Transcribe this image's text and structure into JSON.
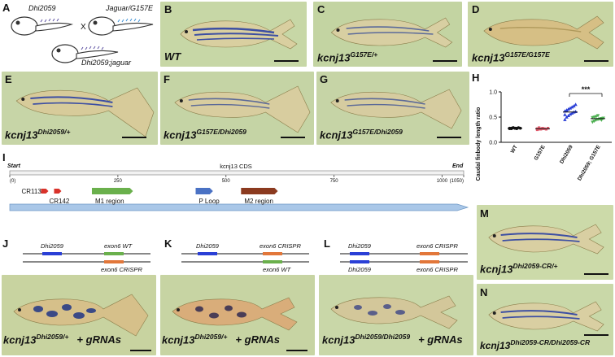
{
  "panels": {
    "A": "A",
    "B": "B",
    "C": "C",
    "D": "D",
    "E": "E",
    "F": "F",
    "G": "G",
    "H": "H",
    "I": "I",
    "J": "J",
    "K": "K",
    "L": "L",
    "M": "M",
    "N": "N"
  },
  "panel_a": {
    "embryo1": "Dhi2059",
    "cross": "X",
    "embryo2": "Jaguar/G157E",
    "embryo3": "Dhi2059;jaguar"
  },
  "fish_captions": {
    "B": {
      "gene": "WT",
      "allele": ""
    },
    "C": {
      "gene": "kcnj13",
      "allele": "G157E/+"
    },
    "D": {
      "gene": "kcnj13",
      "allele": "G157E/G157E"
    },
    "E": {
      "gene": "kcnj13",
      "allele": "Dhi2059/+"
    },
    "F": {
      "gene": "kcnj13",
      "allele": "G157E/Dhi2059"
    },
    "G": {
      "gene": "kcnj13",
      "allele": "G157E/Dhi2059"
    },
    "M": {
      "gene": "kcnj13",
      "allele": "Dhi2059-CR/+"
    },
    "N": {
      "gene": "kcnj13",
      "allele": "Dhi2059-CR/Dhi2059-CR"
    },
    "J2": {
      "gene": "kcnj13",
      "allele": "Dhi2059/+",
      "suffix": "+ gRNAs"
    },
    "K2": {
      "gene": "kcnj13",
      "allele": "Dhi2059/+",
      "suffix": "+ gRNAs"
    },
    "L2": {
      "gene": "kcnj13",
      "allele": "Dhi2059/Dhi2059",
      "suffix": "+ gRNAs"
    }
  },
  "cds_map": {
    "title": "kcnj13 CDS",
    "start": "Start",
    "end": "End",
    "ticks": [
      "(0)",
      "250",
      "500",
      "750",
      "1000",
      "(1050)"
    ],
    "features": [
      {
        "label": "CR113",
        "pos": 80,
        "color": "#d9322a"
      },
      {
        "label": "CR142",
        "pos": 110,
        "color": "#d9322a"
      },
      {
        "label": "M1 region",
        "start": 190,
        "end": 285,
        "color": "#6ab04c"
      },
      {
        "label": "P Loop",
        "start": 430,
        "end": 470,
        "color": "#4a72c4"
      },
      {
        "label": "M2 region",
        "start": 535,
        "end": 620,
        "color": "#8b3a1f"
      }
    ]
  },
  "diagram_J": {
    "top_left": "Dhi2059",
    "top_right": "exon6 WT",
    "bottom_right": "exon6 CRISPR"
  },
  "diagram_K": {
    "top_left": "Dhi2059",
    "top_right": "exon6 CRISPR",
    "bottom_right": "exon6 WT"
  },
  "diagram_L": {
    "top_left": "Dhi2059",
    "top_right": "exon6 CRISPR",
    "bottom_left": "Dhi2059",
    "bottom_right": "exon6 CRISPR"
  },
  "colors": {
    "dhi_bar": "#2a3fd6",
    "wt_bar": "#6ab04c",
    "crispr_bar": "#e2773a",
    "photo_bg": "#c9d8a8"
  },
  "chart_data": {
    "type": "scatter",
    "ylabel": "Caudal finbody length ratio",
    "categories": [
      "WT",
      "G157E",
      "Dhi2059",
      "Dhi2059; G157E"
    ],
    "ylim": [
      0.0,
      1.0
    ],
    "yticks": [
      "0.0",
      "0.5",
      "1.0"
    ],
    "significance": "***",
    "series": [
      {
        "category": "WT",
        "color": "#111111",
        "marker": "circle",
        "mean": 0.28,
        "values": [
          0.27,
          0.28,
          0.29,
          0.28,
          0.27,
          0.29,
          0.28,
          0.28,
          0.27,
          0.29,
          0.28,
          0.28
        ]
      },
      {
        "category": "G157E",
        "color": "#e05a6b",
        "marker": "square",
        "mean": 0.27,
        "values": [
          0.25,
          0.26,
          0.27,
          0.28,
          0.27,
          0.26,
          0.28,
          0.27,
          0.29,
          0.26,
          0.27
        ]
      },
      {
        "category": "Dhi2059",
        "color": "#2a3fd6",
        "marker": "triangle",
        "mean": 0.6,
        "values": [
          0.45,
          0.5,
          0.53,
          0.56,
          0.58,
          0.6,
          0.61,
          0.62,
          0.64,
          0.66,
          0.68,
          0.7,
          0.72,
          0.75,
          0.55,
          0.63
        ]
      },
      {
        "category": "Dhi2059; G157E",
        "color": "#4caf50",
        "marker": "triangle-down",
        "mean": 0.47,
        "values": [
          0.4,
          0.42,
          0.44,
          0.45,
          0.46,
          0.47,
          0.48,
          0.49,
          0.5,
          0.51,
          0.53,
          0.46,
          0.44,
          0.48
        ]
      }
    ]
  }
}
